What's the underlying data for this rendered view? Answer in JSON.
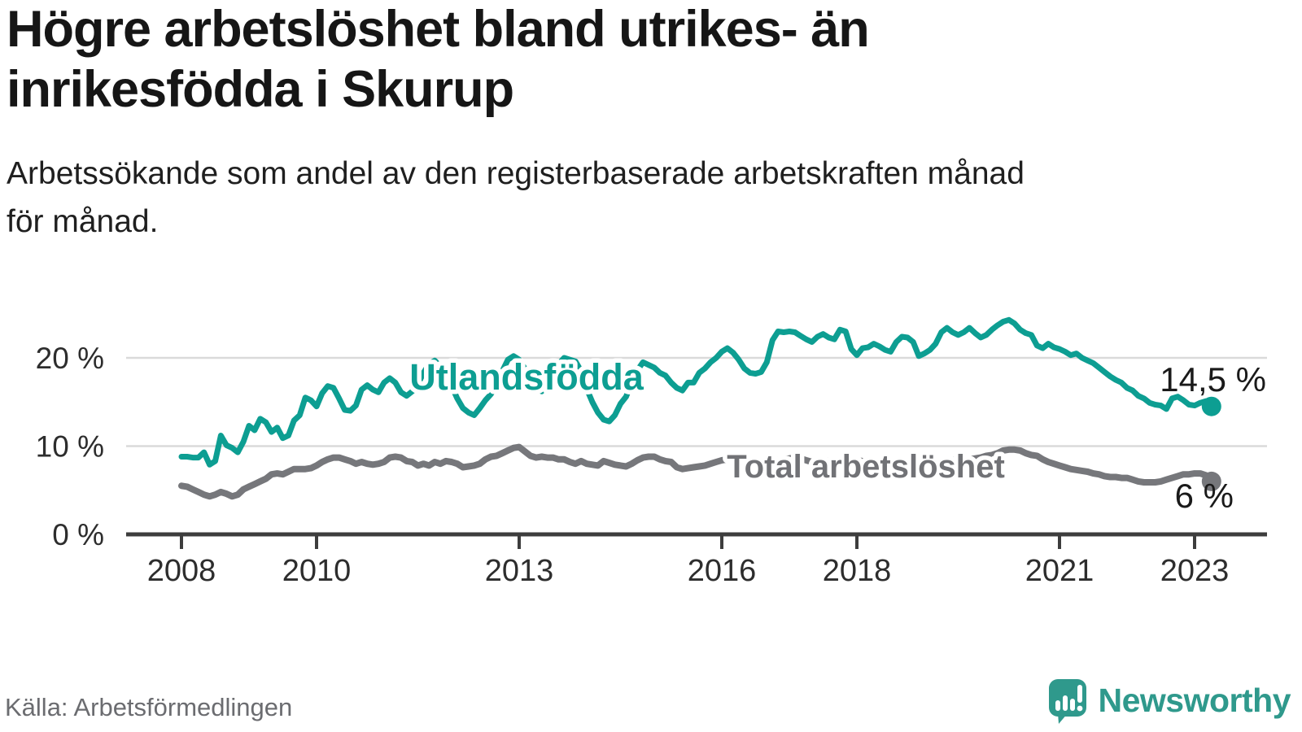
{
  "header": {
    "title": "Högre arbetslöshet bland utrikes- än\ninrikesfödda i Skurup",
    "subtitle": "Arbetssökande som andel av den registerbaserade arbetskraften månad\nför månad."
  },
  "chart_data": {
    "type": "line",
    "title": "Högre arbetslöshet bland utrikes- än inrikesfödda i Skurup",
    "subtitle": "Arbetssökande som andel av den registerbaserade arbetskraften månad för månad.",
    "unit": "%",
    "frequency": "monthly",
    "x_start": "2008-01",
    "x_end": "2023-04",
    "x_ticks": [
      2008,
      2010,
      2013,
      2016,
      2018,
      2021,
      2023
    ],
    "y_ticks": [
      {
        "value": 0,
        "label": "0 %"
      },
      {
        "value": 10,
        "label": "10 %"
      },
      {
        "value": 20,
        "label": "20 %"
      }
    ],
    "ylim": [
      0,
      25.5
    ],
    "grid": "horizontal",
    "series": [
      {
        "name": "Utlandsfödda",
        "color": "#0d9e92",
        "end_label": "14,5 %",
        "end_value": 14.5,
        "values": [
          8.8,
          8.8,
          8.7,
          8.7,
          9.3,
          7.9,
          8.3,
          11.2,
          10.1,
          9.8,
          9.3,
          10.5,
          12.3,
          11.8,
          13.1,
          12.7,
          11.6,
          12.1,
          10.9,
          11.2,
          12.9,
          13.5,
          15.5,
          15.2,
          14.5,
          16.0,
          16.8,
          16.6,
          15.4,
          14.1,
          14.0,
          14.6,
          16.4,
          16.9,
          16.4,
          16.1,
          17.2,
          17.7,
          17.2,
          16.1,
          15.7,
          16.2,
          17.0,
          18.3,
          19.3,
          19.7,
          19.0,
          18.0,
          16.8,
          15.4,
          14.3,
          13.8,
          13.5,
          14.3,
          15.2,
          15.9,
          17.0,
          18.5,
          19.8,
          20.2,
          19.8,
          18.8,
          17.5,
          16.5,
          16.2,
          17.0,
          18.0,
          19.3,
          20.0,
          19.8,
          19.6,
          18.5,
          16.5,
          15.0,
          13.8,
          13.0,
          12.8,
          13.5,
          14.8,
          15.6,
          17.2,
          18.6,
          19.5,
          19.2,
          18.9,
          18.3,
          18.0,
          17.2,
          16.6,
          16.3,
          17.2,
          17.2,
          18.3,
          18.8,
          19.5,
          20.0,
          20.7,
          21.1,
          20.6,
          19.8,
          18.8,
          18.3,
          18.2,
          18.4,
          19.5,
          22.0,
          23.0,
          22.9,
          23.0,
          22.9,
          22.5,
          22.1,
          21.8,
          22.4,
          22.7,
          22.3,
          22.1,
          23.2,
          23.0,
          21.0,
          20.3,
          21.1,
          21.2,
          21.6,
          21.3,
          20.9,
          20.7,
          21.8,
          22.4,
          22.3,
          21.8,
          20.2,
          20.5,
          20.9,
          21.6,
          22.9,
          23.4,
          22.9,
          22.6,
          22.9,
          23.4,
          22.8,
          22.3,
          22.6,
          23.2,
          23.7,
          24.1,
          24.3,
          23.9,
          23.2,
          22.8,
          22.6,
          21.4,
          21.1,
          21.6,
          21.2,
          21.0,
          20.7,
          20.3,
          20.5,
          20.0,
          19.7,
          19.4,
          18.9,
          18.4,
          17.9,
          17.5,
          17.2,
          16.6,
          16.3,
          15.7,
          15.4,
          14.9,
          14.7,
          14.6,
          14.2,
          15.4,
          15.6,
          15.2,
          14.7,
          14.6,
          14.9,
          15.1,
          14.5
        ]
      },
      {
        "name": "Total arbetslöshet",
        "color": "#76777b",
        "end_label": "6 %",
        "end_value": 6,
        "values": [
          5.5,
          5.4,
          5.1,
          4.8,
          4.5,
          4.3,
          4.5,
          4.8,
          4.6,
          4.3,
          4.5,
          5.1,
          5.4,
          5.7,
          6.0,
          6.3,
          6.8,
          6.9,
          6.8,
          7.1,
          7.4,
          7.4,
          7.4,
          7.5,
          7.8,
          8.2,
          8.5,
          8.7,
          8.7,
          8.5,
          8.3,
          8.0,
          8.2,
          8.0,
          7.9,
          8.0,
          8.2,
          8.7,
          8.8,
          8.7,
          8.3,
          8.2,
          7.8,
          8.0,
          7.8,
          8.2,
          8.0,
          8.3,
          8.2,
          8.0,
          7.6,
          7.7,
          7.8,
          8.0,
          8.5,
          8.8,
          8.9,
          9.2,
          9.5,
          9.8,
          9.9,
          9.4,
          8.9,
          8.7,
          8.8,
          8.7,
          8.7,
          8.5,
          8.5,
          8.2,
          8.0,
          8.3,
          8.0,
          7.9,
          7.8,
          8.3,
          8.1,
          7.9,
          7.8,
          7.7,
          8.0,
          8.4,
          8.7,
          8.8,
          8.8,
          8.5,
          8.3,
          8.2,
          7.6,
          7.4,
          7.5,
          7.6,
          7.7,
          7.8,
          8.0,
          8.2,
          8.4,
          8.5,
          8.4,
          8.2,
          8.0,
          7.9,
          7.8,
          7.9,
          8.0,
          8.2,
          8.4,
          8.5,
          8.6,
          8.7,
          8.6,
          8.4,
          8.2,
          8.3,
          8.4,
          8.3,
          8.2,
          8.3,
          8.4,
          8.5,
          8.4,
          8.3,
          8.2,
          8.0,
          7.9,
          7.8,
          7.9,
          8.0,
          7.9,
          7.8,
          7.9,
          8.0,
          8.1,
          8.2,
          8.1,
          8.2,
          8.3,
          8.4,
          8.5,
          8.4,
          8.5,
          8.6,
          8.7,
          8.9,
          9.0,
          9.2,
          9.5,
          9.6,
          9.6,
          9.5,
          9.2,
          9.0,
          8.9,
          8.5,
          8.2,
          8.0,
          7.8,
          7.6,
          7.4,
          7.3,
          7.2,
          7.1,
          6.9,
          6.8,
          6.6,
          6.5,
          6.5,
          6.4,
          6.4,
          6.2,
          6.0,
          5.9,
          5.9,
          5.9,
          6.0,
          6.2,
          6.4,
          6.6,
          6.8,
          6.8,
          6.9,
          6.9,
          6.7,
          6.0
        ]
      }
    ],
    "legend_position": "inline-labels"
  },
  "footer": {
    "source": "Källa: Arbetsförmedlingen",
    "brand": "Newsworthy",
    "brand_color": "#2f998c"
  }
}
